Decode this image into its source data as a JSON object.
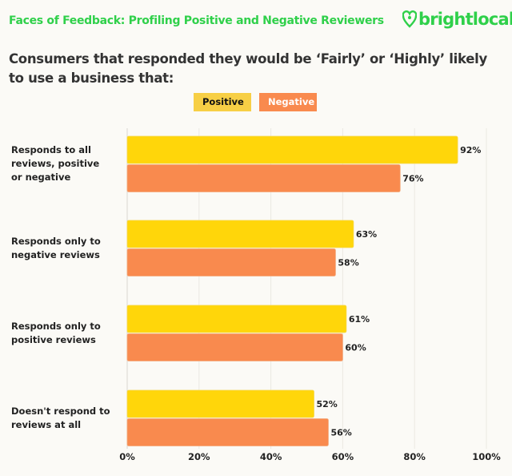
{
  "header": {
    "title": "Faces of Feedback: Profiling Positive and Negative Reviewers",
    "logo_text": "brightlocal",
    "logo_icon": "map-pin-heart-icon"
  },
  "chart_data": {
    "type": "bar",
    "orientation": "horizontal",
    "title": "Consumers that responded they would be ‘Fairly’ or ‘Highly’ likely to use a business that:",
    "categories": [
      "Responds to all reviews, positive or negative",
      "Responds only  to negative reviews",
      "Responds only  to positive reviews",
      "Doesn't respond to reviews at all"
    ],
    "category_lines": [
      [
        "Responds to all",
        "reviews, positive",
        "or negative"
      ],
      [
        "Responds only  to",
        "negative reviews"
      ],
      [
        "Responds only  to",
        "positive reviews"
      ],
      [
        "Doesn't respond to",
        "reviews at all"
      ]
    ],
    "series": [
      {
        "name": "Positive",
        "color": "#ffd60a",
        "legend_color": "#f7cf45",
        "values": [
          92,
          63,
          61,
          52
        ],
        "labels": [
          "92%",
          "63%",
          "61%",
          "52%"
        ]
      },
      {
        "name": "Negative",
        "color": "#f98a4e",
        "legend_color": "#f98a4e",
        "values": [
          76,
          58,
          60,
          56
        ],
        "labels": [
          "76%",
          "58%",
          "60%",
          "56%"
        ]
      }
    ],
    "xlim": [
      0,
      100
    ],
    "xticks": [
      0,
      20,
      40,
      60,
      80,
      100
    ],
    "xtick_labels": [
      "0%",
      "20%",
      "40%",
      "60%",
      "80%",
      "100%"
    ],
    "grid": true,
    "legend_placement": "top-center"
  }
}
